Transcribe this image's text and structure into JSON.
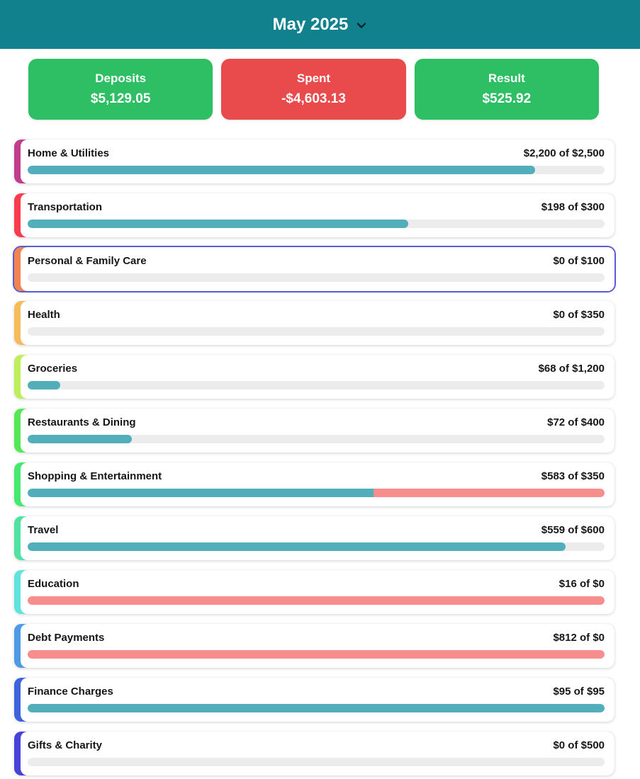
{
  "header": {
    "title": "May 2025"
  },
  "summary": {
    "cards": [
      {
        "label": "Deposits",
        "value": "$5,129.05",
        "color": "#2ebe64"
      },
      {
        "label": "Spent",
        "value": "-$4,603.13",
        "color": "#e94a4c"
      },
      {
        "label": "Result",
        "value": "$525.92",
        "color": "#2ebe64"
      }
    ]
  },
  "budgets": {
    "colors": {
      "progress_fill": "#52aebb",
      "overflow_fill": "#f78d8d",
      "track": "#ececec",
      "selected_border": "#5b5bd7"
    },
    "items": [
      {
        "name": "Home & Utilities",
        "amount_text": "$2,200 of $2,500",
        "spent": 2200,
        "budget": 2500,
        "accent": "#c03c8c",
        "fill_pct": 88,
        "over_pct": 0,
        "selected": false
      },
      {
        "name": "Transportation",
        "amount_text": "$198 of $300",
        "spent": 198,
        "budget": 300,
        "accent": "#fa3b4d",
        "fill_pct": 66,
        "over_pct": 0,
        "selected": false
      },
      {
        "name": "Personal & Family Care",
        "amount_text": "$0 of $100",
        "spent": 0,
        "budget": 100,
        "accent": "#f0834f",
        "fill_pct": 0,
        "over_pct": 0,
        "selected": true
      },
      {
        "name": "Health",
        "amount_text": "$0 of $350",
        "spent": 0,
        "budget": 350,
        "accent": "#f6bb5b",
        "fill_pct": 0,
        "over_pct": 0,
        "selected": false
      },
      {
        "name": "Groceries",
        "amount_text": "$68 of $1,200",
        "spent": 68,
        "budget": 1200,
        "accent": "#bfee5b",
        "fill_pct": 5.7,
        "over_pct": 0,
        "selected": false
      },
      {
        "name": "Restaurants & Dining",
        "amount_text": "$72 of $400",
        "spent": 72,
        "budget": 400,
        "accent": "#55e754",
        "fill_pct": 18,
        "over_pct": 0,
        "selected": false
      },
      {
        "name": "Shopping & Entertainment",
        "amount_text": "$583 of $350",
        "spent": 583,
        "budget": 350,
        "accent": "#45e96e",
        "fill_pct": 60,
        "over_pct": 40,
        "selected": false
      },
      {
        "name": "Travel",
        "amount_text": "$559 of $600",
        "spent": 559,
        "budget": 600,
        "accent": "#4fe2a2",
        "fill_pct": 93.2,
        "over_pct": 0,
        "selected": false
      },
      {
        "name": "Education",
        "amount_text": "$16 of $0",
        "spent": 16,
        "budget": 0,
        "accent": "#5fe3df",
        "fill_pct": 0,
        "over_pct": 100,
        "selected": false
      },
      {
        "name": "Debt Payments",
        "amount_text": "$812 of $0",
        "spent": 812,
        "budget": 0,
        "accent": "#4e9ae5",
        "fill_pct": 0,
        "over_pct": 100,
        "selected": false
      },
      {
        "name": "Finance Charges",
        "amount_text": "$95 of $95",
        "spent": 95,
        "budget": 95,
        "accent": "#3f62dd",
        "fill_pct": 100,
        "over_pct": 0,
        "selected": false
      },
      {
        "name": "Gifts & Charity",
        "amount_text": "$0 of $500",
        "spent": 0,
        "budget": 500,
        "accent": "#4843d8",
        "fill_pct": 0,
        "over_pct": 0,
        "selected": false
      }
    ]
  }
}
